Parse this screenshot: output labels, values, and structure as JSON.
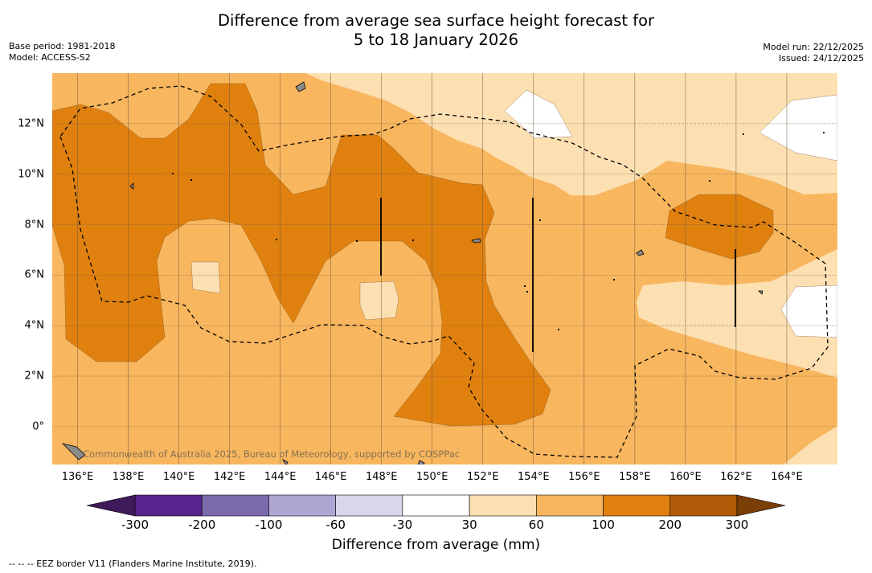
{
  "title": {
    "line1": "Difference from average sea surface height forecast for",
    "line2": "5 to 18 January 2026"
  },
  "meta": {
    "base_period": "Base period: 1981-2018",
    "model": "Model: ACCESS-S2",
    "model_run": "Model run: 22/12/2025",
    "issued": "Issued: 24/12/2025"
  },
  "map": {
    "lon_range": [
      135,
      166
    ],
    "lat_range": [
      -1.5,
      14
    ],
    "x_ticks": [
      "136°E",
      "138°E",
      "140°E",
      "142°E",
      "144°E",
      "146°E",
      "148°E",
      "150°E",
      "152°E",
      "154°E",
      "156°E",
      "158°E",
      "160°E",
      "162°E",
      "164°E"
    ],
    "y_ticks": [
      "12°N",
      "10°N",
      "8°N",
      "6°N",
      "4°N",
      "2°N",
      "0°"
    ],
    "watermark": "Commonwealth of Australia 2025, Bureau of Meteorology, supported by COSPPac"
  },
  "colorbar": {
    "labels": [
      "-300",
      "-200",
      "-100",
      "-60",
      "-30",
      "30",
      "60",
      "100",
      "200",
      "300"
    ],
    "colors": [
      "#3d1a5a",
      "#56248c",
      "#7b6aac",
      "#aea6d2",
      "#d7d6ea",
      "#ffffff",
      "#fde0b2",
      "#f8b65e",
      "#e0800f",
      "#b15a08",
      "#7a3e07"
    ],
    "title": "Difference from average (mm)"
  },
  "footnote": "--  --  -- EEZ border V11 (Flanders Marine Institute, 2019)."
}
